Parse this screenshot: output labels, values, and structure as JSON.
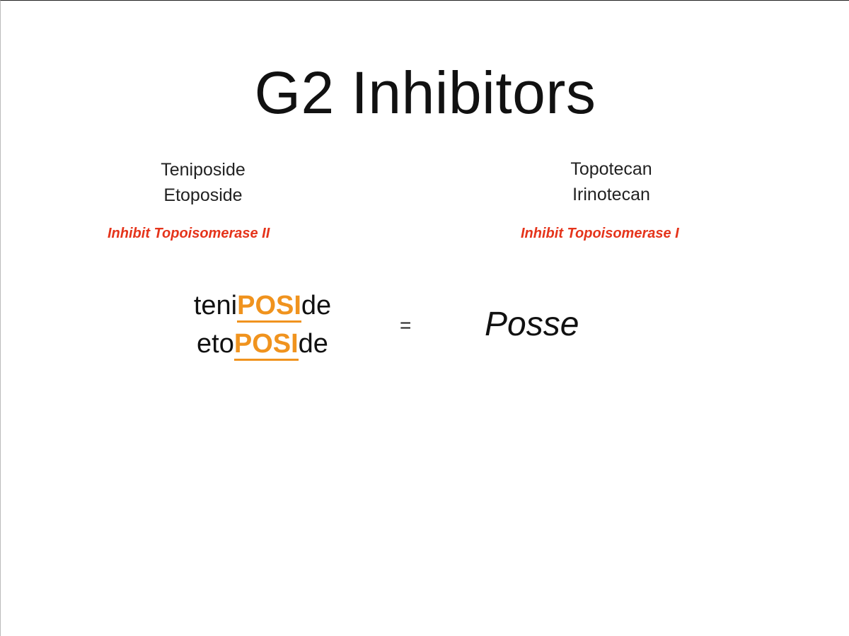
{
  "slide": {
    "title": "G2 Inhibitors",
    "left_group": {
      "drugs": [
        "Teniposide",
        "Etoposide"
      ],
      "mechanism": "Inhibit Topoisomerase II"
    },
    "right_group": {
      "drugs": [
        "Topotecan",
        "Irinotecan"
      ],
      "mechanism": "Inhibit Topoisomerase I"
    },
    "mnemonic": {
      "line1": {
        "prefix": "teni",
        "highlight": "POSI",
        "suffix": "de"
      },
      "line2": {
        "prefix": "eto",
        "highlight": "POSI",
        "suffix": "de"
      },
      "equals": "=",
      "result": "Posse"
    },
    "colors": {
      "mechanism": "#e5341b",
      "highlight": "#f0931e",
      "text": "#111111"
    }
  }
}
